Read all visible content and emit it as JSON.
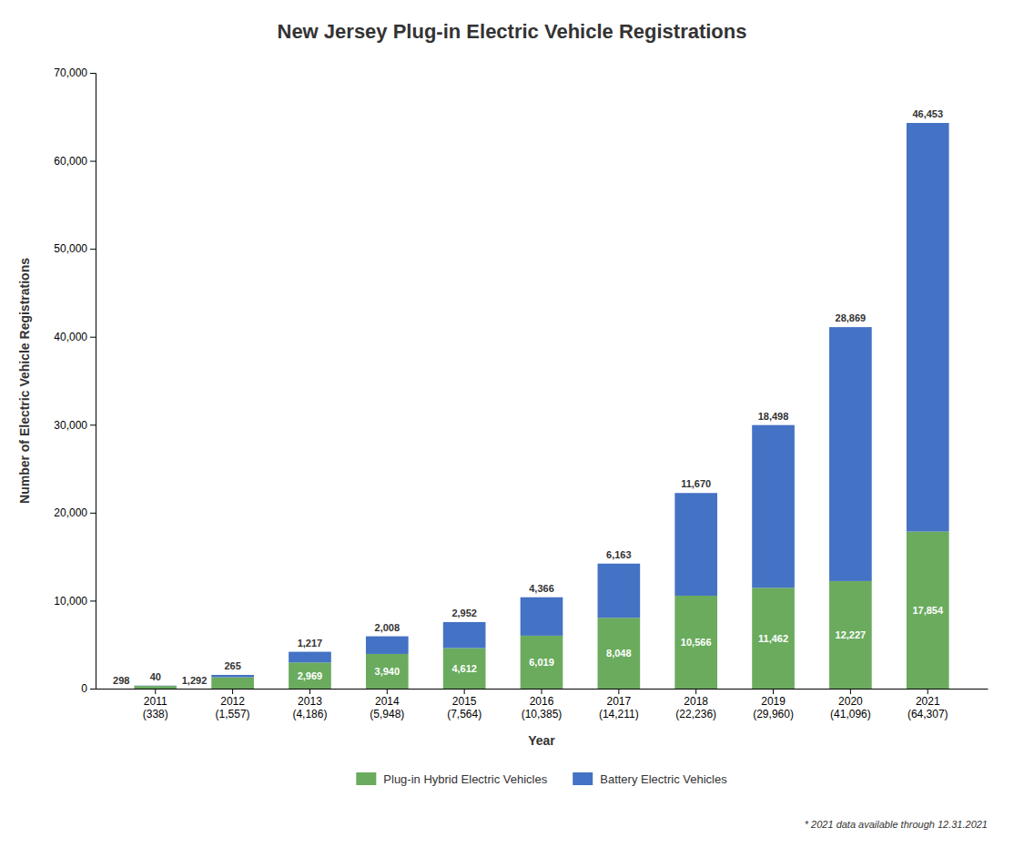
{
  "chart_data": {
    "type": "bar",
    "stacked": true,
    "title": "New Jersey Plug-in Electric Vehicle Registrations",
    "xlabel": "Year",
    "ylabel": "Number of Electric Vehicle Registrations",
    "categories": [
      "2011\n(338)",
      "2012\n(1,557)",
      "2013\n(4,186)",
      "2014\n(5,948)",
      "2015\n(7,564)",
      "2016\n(10,385)",
      "2017\n(14,211)",
      "2018\n(22,236)",
      "2019\n(29,960)",
      "2020\n(41,096)",
      "2021\n(64,307)"
    ],
    "series": [
      {
        "name": "Plug-in Hybrid Electric Vehicles",
        "color": "#6aab5e",
        "values": [
          298,
          1292,
          2969,
          3940,
          4612,
          6019,
          8048,
          10566,
          11462,
          12227,
          17854
        ],
        "value_labels": [
          "298",
          "1,292",
          "2,969",
          "3,940",
          "4,612",
          "6,019",
          "8,048",
          "10,566",
          "11,462",
          "12,227",
          "17,854"
        ]
      },
      {
        "name": "Battery Electric Vehicles",
        "color": "#4472c4",
        "values": [
          40,
          265,
          1217,
          2008,
          2952,
          4366,
          6163,
          11670,
          18498,
          28869,
          46453
        ],
        "value_labels": [
          "40",
          "265",
          "1,217",
          "2,008",
          "2,952",
          "4,366",
          "6,163",
          "11,670",
          "18,498",
          "28,869",
          "46,453"
        ]
      }
    ],
    "ylim": [
      0,
      70000
    ],
    "yticks": [
      0,
      {
        "value": 10000,
        "label": "10,000"
      },
      {
        "value": 20000,
        "label": "20,000"
      },
      {
        "value": 30000,
        "label": "30,000"
      },
      {
        "value": 40000,
        "label": "40,000"
      },
      {
        "value": 50000,
        "label": "50,000"
      },
      {
        "value": 60000,
        "label": "60,000"
      },
      {
        "value": 70000,
        "label": "70,000"
      }
    ],
    "grid": false,
    "legend": "bottom",
    "data_labels": true,
    "annotations": [
      "* 2021 data available through 12.31.2021"
    ]
  }
}
